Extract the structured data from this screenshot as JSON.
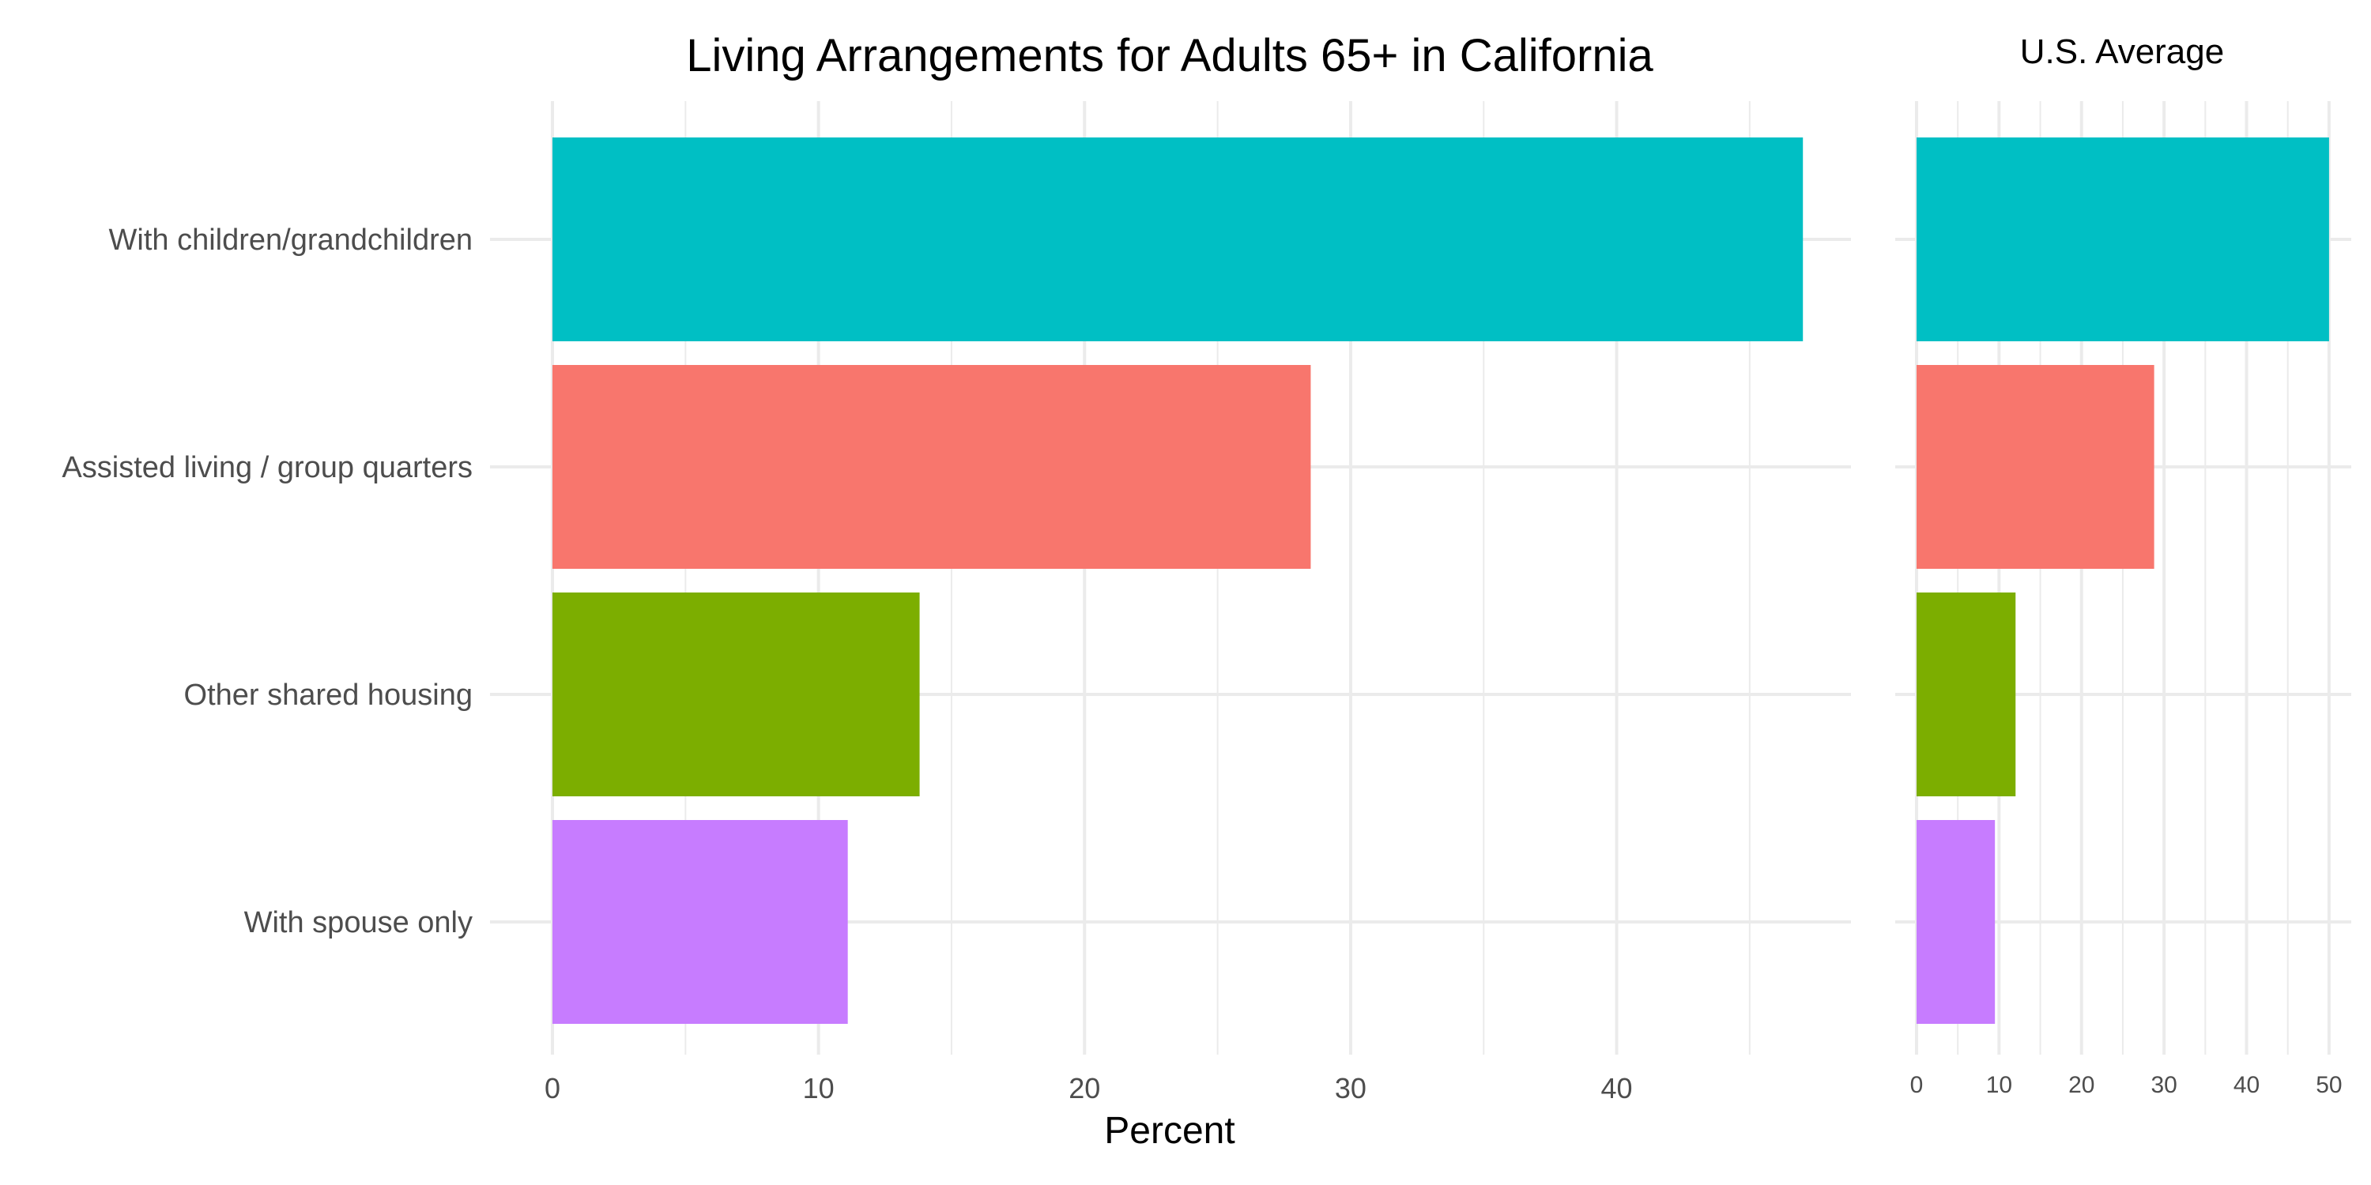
{
  "chart_data": [
    {
      "type": "bar",
      "orientation": "horizontal",
      "title": "Living Arrangements for Adults 65+ in California",
      "xlabel": "Percent",
      "ylabel": "",
      "categories": [
        "With children/grandchildren",
        "Assisted living / group quarters",
        "Other shared housing",
        "With spouse only"
      ],
      "values": [
        47.0,
        28.5,
        13.8,
        11.1
      ],
      "colors": [
        "#00BFC4",
        "#F8766D",
        "#7CAE00",
        "#C77CFF"
      ],
      "xlim": [
        0,
        49.4
      ],
      "xticks": [
        0,
        10,
        20,
        30,
        40
      ],
      "grid": true,
      "legend": "none"
    },
    {
      "type": "bar",
      "orientation": "horizontal",
      "title": "U.S. Average",
      "xlabel": "",
      "ylabel": "",
      "categories": [
        "With children/grandchildren",
        "Assisted living / group quarters",
        "Other shared housing",
        "With spouse only"
      ],
      "values": [
        50.0,
        28.8,
        12.0,
        9.5
      ],
      "colors": [
        "#00BFC4",
        "#F8766D",
        "#7CAE00",
        "#C77CFF"
      ],
      "xlim": [
        0,
        52.5
      ],
      "xticks": [
        0,
        10,
        20,
        30,
        40,
        50
      ],
      "grid": true,
      "legend": "none"
    }
  ]
}
